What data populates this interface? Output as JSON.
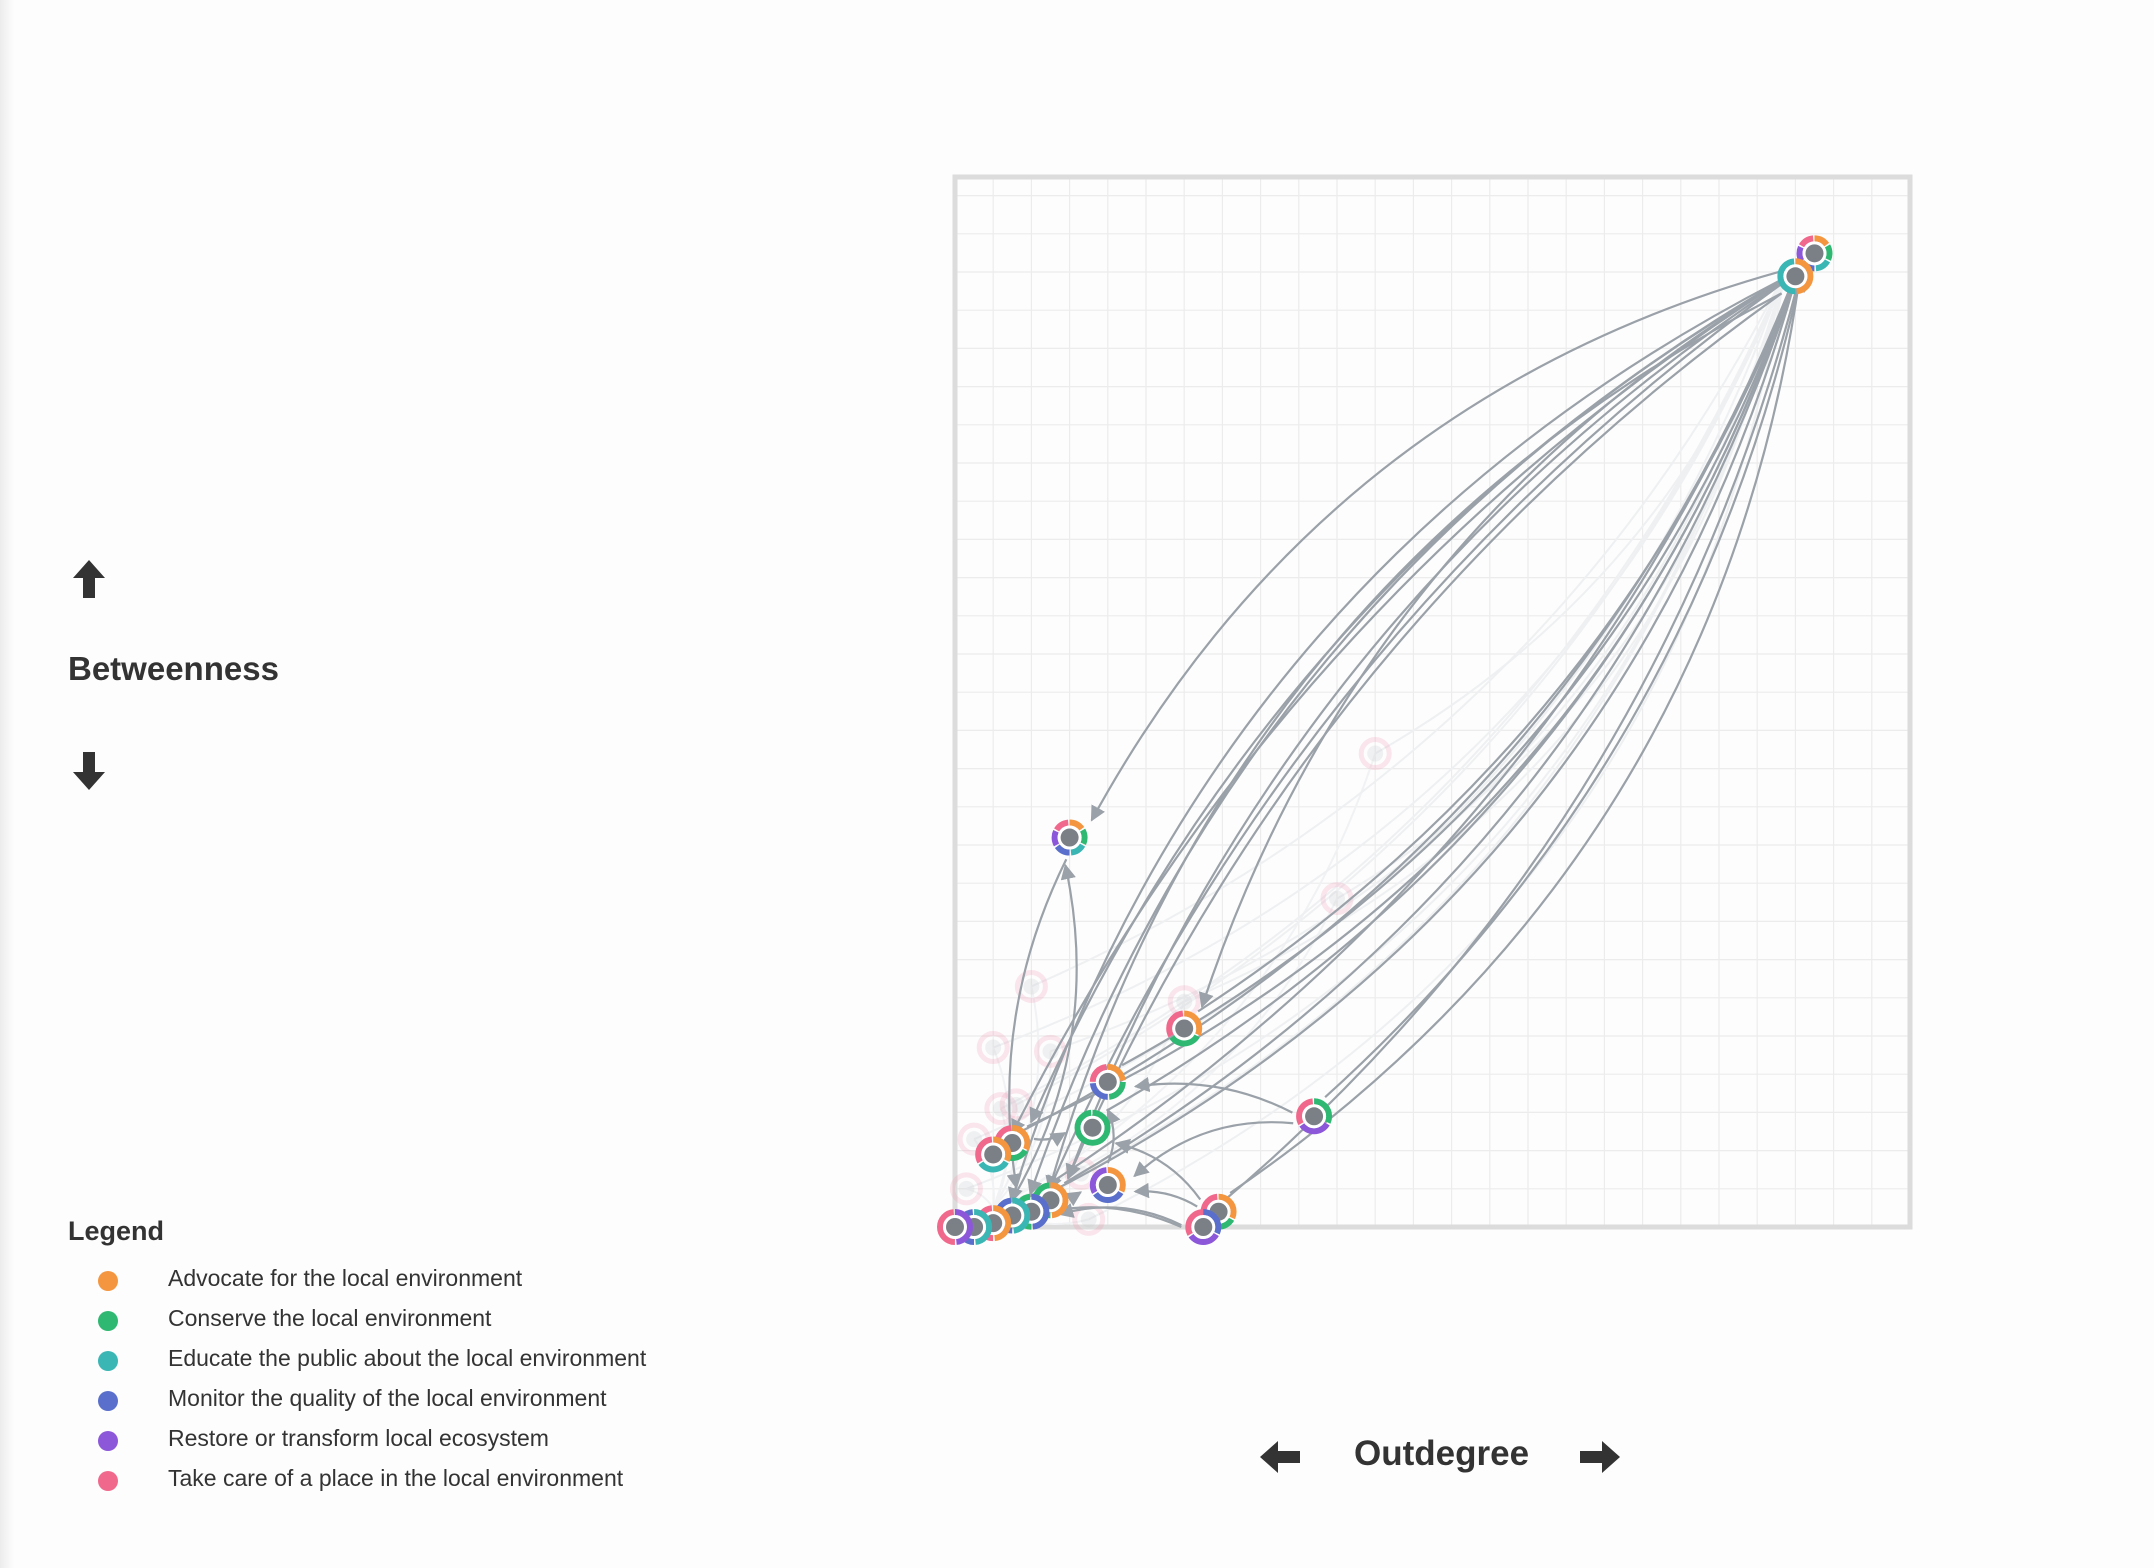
{
  "chart_data": {
    "type": "scatter",
    "subtype": "network-graph",
    "xlabel": "Outdegree",
    "ylabel": "Betweenness",
    "xlim": [
      0,
      25
    ],
    "ylim": [
      0,
      27.5
    ],
    "grid": true,
    "legend": {
      "title": "Legend",
      "placement": "bottom-left",
      "items": [
        {
          "name": "Advocate for the local environment",
          "color": "#f4963f"
        },
        {
          "name": "Conserve the local environment",
          "color": "#2fb872"
        },
        {
          "name": "Educate the public about the local environment",
          "color": "#3ab6b4"
        },
        {
          "name": "Monitor the quality of the local environment",
          "color": "#5a6fcb"
        },
        {
          "name": "Restore or transform local ecosystem",
          "color": "#8c57d9"
        },
        {
          "name": "Take care of a place in the local environment",
          "color": "#f0698c"
        }
      ]
    },
    "nodes": [
      {
        "id": "n1",
        "x": 22.5,
        "y": 25.5,
        "categories": [
          "Advocate for the local environment",
          "Conserve the local environment",
          "Educate the public about the local environment",
          "Monitor the quality of the local environment",
          "Restore or transform local ecosystem",
          "Take care of a place in the local environment"
        ]
      },
      {
        "id": "n2",
        "x": 22.0,
        "y": 24.9,
        "categories": [
          "Advocate for the local environment",
          "Educate the public about the local environment"
        ]
      },
      {
        "id": "n3",
        "x": 3.0,
        "y": 10.2,
        "categories": [
          "Advocate for the local environment",
          "Conserve the local environment",
          "Educate the public about the local environment",
          "Monitor the quality of the local environment",
          "Restore or transform local ecosystem",
          "Take care of a place in the local environment"
        ]
      },
      {
        "id": "n4",
        "x": 6.0,
        "y": 5.2,
        "categories": [
          "Advocate for the local environment",
          "Conserve the local environment",
          "Take care of a place in the local environment"
        ]
      },
      {
        "id": "n5",
        "x": 4.0,
        "y": 3.8,
        "categories": [
          "Advocate for the local environment",
          "Conserve the local environment",
          "Monitor the quality of the local environment",
          "Take care of a place in the local environment"
        ]
      },
      {
        "id": "n6",
        "x": 3.6,
        "y": 2.6,
        "categories": [
          "Conserve the local environment"
        ]
      },
      {
        "id": "n7",
        "x": 9.4,
        "y": 2.9,
        "categories": [
          "Conserve the local environment",
          "Restore or transform local ecosystem",
          "Take care of a place in the local environment"
        ]
      },
      {
        "id": "n8",
        "x": 4.0,
        "y": 1.1,
        "categories": [
          "Advocate for the local environment",
          "Monitor the quality of the local environment",
          "Restore or transform local ecosystem"
        ]
      },
      {
        "id": "n9",
        "x": 6.9,
        "y": 0.4,
        "categories": [
          "Advocate for the local environment",
          "Conserve the local environment",
          "Take care of a place in the local environment"
        ]
      },
      {
        "id": "n10",
        "x": 6.5,
        "y": 0.0,
        "categories": [
          "Monitor the quality of the local environment",
          "Restore or transform local ecosystem",
          "Take care of a place in the local environment"
        ]
      },
      {
        "id": "n11",
        "x": 1.5,
        "y": 2.2,
        "categories": [
          "Advocate for the local environment",
          "Conserve the local environment",
          "Take care of a place in the local environment"
        ]
      },
      {
        "id": "n12",
        "x": 1.0,
        "y": 1.9,
        "categories": [
          "Advocate for the local environment",
          "Educate the public about the local environment",
          "Take care of a place in the local environment"
        ]
      },
      {
        "id": "n13",
        "x": 2.5,
        "y": 0.7,
        "categories": [
          "Advocate for the local environment",
          "Conserve the local environment"
        ]
      },
      {
        "id": "n14",
        "x": 2.0,
        "y": 0.4,
        "categories": [
          "Monitor the quality of the local environment",
          "Conserve the local environment"
        ]
      },
      {
        "id": "n15",
        "x": 1.5,
        "y": 0.3,
        "categories": [
          "Educate the public about the local environment",
          "Monitor the quality of the local environment"
        ]
      },
      {
        "id": "n16",
        "x": 1.0,
        "y": 0.1,
        "categories": [
          "Advocate for the local environment",
          "Take care of a place in the local environment"
        ]
      },
      {
        "id": "n17",
        "x": 0.5,
        "y": 0.0,
        "categories": [
          "Educate the public about the local environment",
          "Monitor the quality of the local environment"
        ]
      },
      {
        "id": "n18",
        "x": 0.0,
        "y": 0.0,
        "categories": [
          "Restore or transform local ecosystem",
          "Take care of a place in the local environment"
        ]
      }
    ],
    "edges": [
      {
        "source": "n4",
        "target": "n1"
      },
      {
        "source": "n5",
        "target": "n1"
      },
      {
        "source": "n9",
        "target": "n1"
      },
      {
        "source": "n10",
        "target": "n1"
      },
      {
        "source": "n13",
        "target": "n1"
      },
      {
        "source": "n14",
        "target": "n1"
      },
      {
        "source": "n15",
        "target": "n1"
      },
      {
        "source": "n6",
        "target": "n1"
      },
      {
        "source": "n11",
        "target": "n1"
      },
      {
        "source": "n7",
        "target": "n1"
      },
      {
        "source": "n12",
        "target": "n1"
      },
      {
        "source": "n1",
        "target": "n3"
      },
      {
        "source": "n1",
        "target": "n14"
      },
      {
        "source": "n1",
        "target": "n13"
      },
      {
        "source": "n1",
        "target": "n15"
      },
      {
        "source": "n1",
        "target": "n16"
      },
      {
        "source": "n1",
        "target": "n12"
      },
      {
        "source": "n1",
        "target": "n11"
      },
      {
        "source": "n1",
        "target": "n4"
      },
      {
        "source": "n2",
        "target": "n14"
      },
      {
        "source": "n2",
        "target": "n13"
      },
      {
        "source": "n3",
        "target": "n15"
      },
      {
        "source": "n15",
        "target": "n3"
      },
      {
        "source": "n8",
        "target": "n5"
      },
      {
        "source": "n9",
        "target": "n8"
      },
      {
        "source": "n10",
        "target": "n14"
      },
      {
        "source": "n7",
        "target": "n8"
      },
      {
        "source": "n7",
        "target": "n5"
      },
      {
        "source": "n9",
        "target": "n6"
      },
      {
        "source": "n10",
        "target": "n17"
      },
      {
        "source": "n13",
        "target": "n8"
      },
      {
        "source": "n11",
        "target": "n6"
      }
    ],
    "faded_nodes": [
      {
        "x": 11.0,
        "y": 12.4
      },
      {
        "x": 10.0,
        "y": 8.6
      },
      {
        "x": 6.0,
        "y": 5.9
      },
      {
        "x": 2.0,
        "y": 6.3
      },
      {
        "x": 1.0,
        "y": 4.7
      },
      {
        "x": 2.5,
        "y": 4.6
      },
      {
        "x": 1.2,
        "y": 3.1
      },
      {
        "x": 0.5,
        "y": 2.3
      },
      {
        "x": 0.3,
        "y": 1.0
      },
      {
        "x": 1.6,
        "y": 3.2
      },
      {
        "x": 3.3,
        "y": 1.4
      },
      {
        "x": 3.5,
        "y": 0.2
      }
    ]
  }
}
